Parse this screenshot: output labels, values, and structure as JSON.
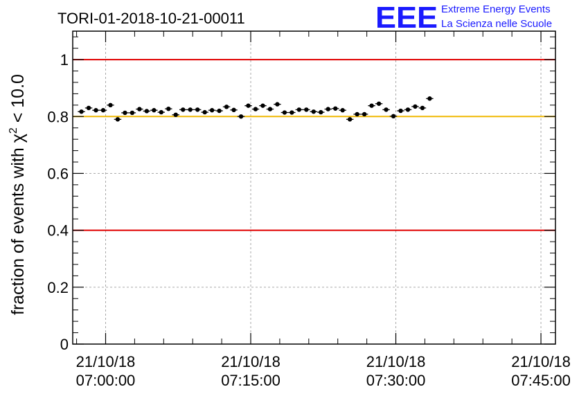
{
  "chart_data": {
    "type": "scatter",
    "title": "TORI-01-2018-10-21-00011",
    "xlabel": "",
    "ylabel_prefix": "fraction of events with ",
    "ylabel_symbol": "χ",
    "ylabel_exponent": "2",
    "ylabel_suffix": " < 10.0",
    "ylim": [
      0,
      1.1
    ],
    "xlim_minutes": [
      -3.4,
      46.5
    ],
    "yticks": [
      {
        "value": 0,
        "label": "0"
      },
      {
        "value": 0.2,
        "label": "0.2"
      },
      {
        "value": 0.4,
        "label": "0.4"
      },
      {
        "value": 0.6,
        "label": "0.6"
      },
      {
        "value": 0.8,
        "label": "0.8"
      },
      {
        "value": 1.0,
        "label": "1"
      }
    ],
    "xticks": [
      {
        "minutes": 0,
        "date": "21/10/18",
        "time": "07:00:00"
      },
      {
        "minutes": 15,
        "date": "21/10/18",
        "time": "07:15:00"
      },
      {
        "minutes": 30,
        "date": "21/10/18",
        "time": "07:30:00"
      },
      {
        "minutes": 45,
        "date": "21/10/18",
        "time": "07:45:00"
      }
    ],
    "reference_lines": [
      {
        "value": 1.0,
        "color": "#e00000"
      },
      {
        "value": 0.8,
        "color": "#f0b800"
      },
      {
        "value": 0.4,
        "color": "#e00000"
      }
    ],
    "grid": true,
    "marker_color": "#000000",
    "series": [
      {
        "name": "fraction",
        "x_start_minutes": -2.5,
        "x_step_minutes": 0.75,
        "y_error": 0.006,
        "values": [
          0.817,
          0.83,
          0.822,
          0.822,
          0.84,
          0.79,
          0.813,
          0.813,
          0.826,
          0.819,
          0.822,
          0.815,
          0.827,
          0.806,
          0.824,
          0.824,
          0.824,
          0.815,
          0.822,
          0.82,
          0.834,
          0.823,
          0.8,
          0.838,
          0.826,
          0.838,
          0.826,
          0.843,
          0.814,
          0.814,
          0.824,
          0.824,
          0.817,
          0.815,
          0.826,
          0.828,
          0.822,
          0.79,
          0.808,
          0.808,
          0.838,
          0.845,
          0.824,
          0.801,
          0.82,
          0.824,
          0.835,
          0.83,
          0.863
        ]
      }
    ]
  },
  "logo": {
    "mark": "EEE",
    "line1": "Extreme Energy Events",
    "line2": "La Scienza nelle Scuole",
    "color": "#1a1aff"
  }
}
